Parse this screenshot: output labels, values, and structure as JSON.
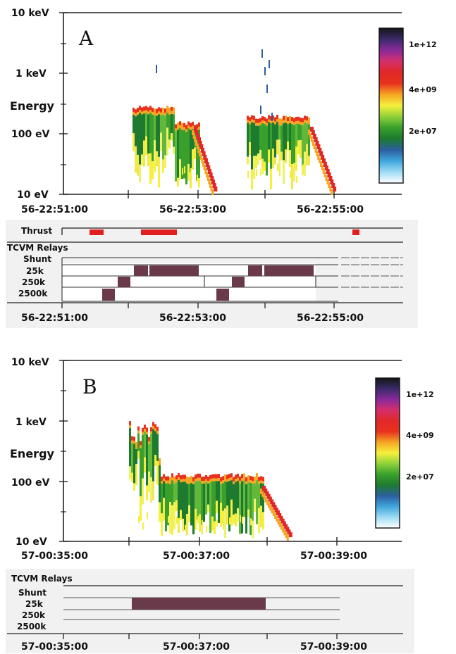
{
  "colors": {
    "colorbar": [
      "#ffffff",
      "#9fdcf5",
      "#3ea6dc",
      "#2c5fa0",
      "#1e7a2f",
      "#39a02c",
      "#8fd13a",
      "#f5f03c",
      "#f5a623",
      "#e8321e",
      "#e02828",
      "#d42f6b",
      "#8a2a9a",
      "#3a2a6a",
      "#151515"
    ],
    "relay_bar": "#6b3a4a",
    "thrust": "#e02020"
  },
  "panels": [
    {
      "id": "A",
      "label": "A",
      "ylabel": "Energy",
      "y_ticks": [
        "10 keV",
        "1 keV",
        "100 eV",
        "10 eV"
      ],
      "x_ticks": [
        "56-22:51:00",
        "56-22:53:00",
        "56-22:55:00"
      ],
      "colorbar_labels": [
        "1e+12",
        "4e+09",
        "2e+07"
      ],
      "thrust_label": "Thrust",
      "relays_title": "TCVM Relays",
      "relay_rows": [
        "Shunt",
        "25k",
        "250k",
        "2500k"
      ],
      "relay_x_ticks": [
        "56-22:51:00",
        "56-22:53:00",
        "56-22:55:00"
      ]
    },
    {
      "id": "B",
      "label": "B",
      "ylabel": "Energy",
      "y_ticks": [
        "10 keV",
        "1 keV",
        "100 eV",
        "10 eV"
      ],
      "x_ticks": [
        "57-00:35:00",
        "57-00:37:00",
        "57-00:39:00"
      ],
      "colorbar_labels": [
        "1e+12",
        "4e+09",
        "2e+07"
      ],
      "relays_title": "TCVM Relays",
      "relay_rows": [
        "Shunt",
        "25k",
        "250k",
        "2500k"
      ],
      "relay_x_ticks": [
        "57-00:35:00",
        "57-00:37:00",
        "57-00:39:00"
      ]
    }
  ],
  "chart_data": [
    {
      "type": "heatmap",
      "title": "A",
      "ylabel": "Energy",
      "y_scale": "log",
      "ylim": [
        "10 eV",
        "10 keV"
      ],
      "x_ticks": [
        "56-22:51:00",
        "56-22:53:00",
        "56-22:55:00"
      ],
      "colorbar": {
        "labels": [
          "1e+12",
          "4e+09",
          "2e+07"
        ]
      },
      "bursts": [
        {
          "start": "56-22:52:00",
          "end": "56-22:53:15",
          "peak_energy_eV": 250,
          "cutoff_end_eV": 10
        },
        {
          "start": "56-22:53:50",
          "end": "56-22:54:55",
          "peak_energy_eV": 180,
          "cutoff_end_eV": 10
        }
      ],
      "thrust_intervals": [
        {
          "start": "56-22:51:15",
          "end": "56-22:51:35"
        },
        {
          "start": "56-22:52:10",
          "end": "56-22:52:45"
        },
        {
          "start": "56-22:55:20",
          "end": "56-22:55:25"
        }
      ],
      "relay_states": [
        {
          "relay": "2500k",
          "start": "56-22:51:35",
          "end": "56-22:51:47"
        },
        {
          "relay": "250k",
          "start": "56-22:51:47",
          "end": "56-22:52:00"
        },
        {
          "relay": "25k",
          "start": "56-22:52:20",
          "end": "56-22:52:35"
        },
        {
          "relay": "25k",
          "start": "56-22:52:35",
          "end": "56-22:53:20"
        },
        {
          "relay": "2500k",
          "start": "56-22:53:20",
          "end": "56-22:53:32"
        },
        {
          "relay": "250k",
          "start": "56-22:53:35",
          "end": "56-22:53:50"
        },
        {
          "relay": "25k",
          "start": "56-22:54:00",
          "end": "56-22:54:15"
        },
        {
          "relay": "25k",
          "start": "56-22:54:15",
          "end": "56-22:54:48"
        }
      ]
    },
    {
      "type": "heatmap",
      "title": "B",
      "ylabel": "Energy",
      "y_scale": "log",
      "ylim": [
        "10 eV",
        "10 keV"
      ],
      "x_ticks": [
        "57-00:35:00",
        "57-00:37:00",
        "57-00:39:00"
      ],
      "colorbar": {
        "labels": [
          "1e+12",
          "4e+09",
          "2e+07"
        ]
      },
      "bursts": [
        {
          "start": "57-00:36:00",
          "end": "57-00:38:15",
          "peak_energy_eV": 1000,
          "plateau_eV": 130,
          "cutoff_end_eV": 10
        }
      ],
      "relay_states": [
        {
          "relay": "25k",
          "start": "57-00:36:05",
          "end": "57-00:37:55"
        }
      ]
    }
  ]
}
